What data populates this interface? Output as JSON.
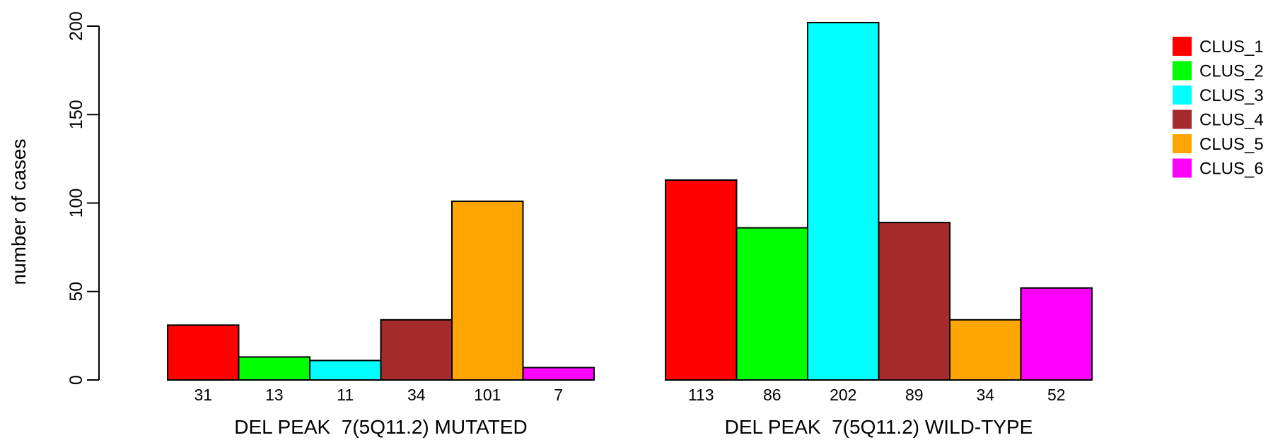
{
  "chart_data": {
    "type": "bar",
    "ylabel": "number of cases",
    "ylim": [
      0,
      200
    ],
    "yticks": [
      0,
      50,
      100,
      150,
      200
    ],
    "grid": false,
    "legend_position": "top-right",
    "series_names": [
      "CLUS_1",
      "CLUS_2",
      "CLUS_3",
      "CLUS_4",
      "CLUS_5",
      "CLUS_6"
    ],
    "colors": {
      "CLUS_1": "#ff0000",
      "CLUS_2": "#00ff00",
      "CLUS_3": "#00ffff",
      "CLUS_4": "#a52a2a",
      "CLUS_5": "#ffa500",
      "CLUS_6": "#ff00ff"
    },
    "groups": [
      {
        "label": "DEL PEAK  7(5Q11.2) MUTATED",
        "values": [
          31,
          13,
          11,
          34,
          101,
          7
        ],
        "value_labels": [
          "31",
          "13",
          "11",
          "34",
          "101",
          "7"
        ]
      },
      {
        "label": "DEL PEAK  7(5Q11.2) WILD-TYPE",
        "values": [
          113,
          86,
          202,
          89,
          34,
          52
        ],
        "value_labels": [
          "113",
          "86",
          "202",
          "89",
          "34",
          "52"
        ]
      }
    ]
  }
}
